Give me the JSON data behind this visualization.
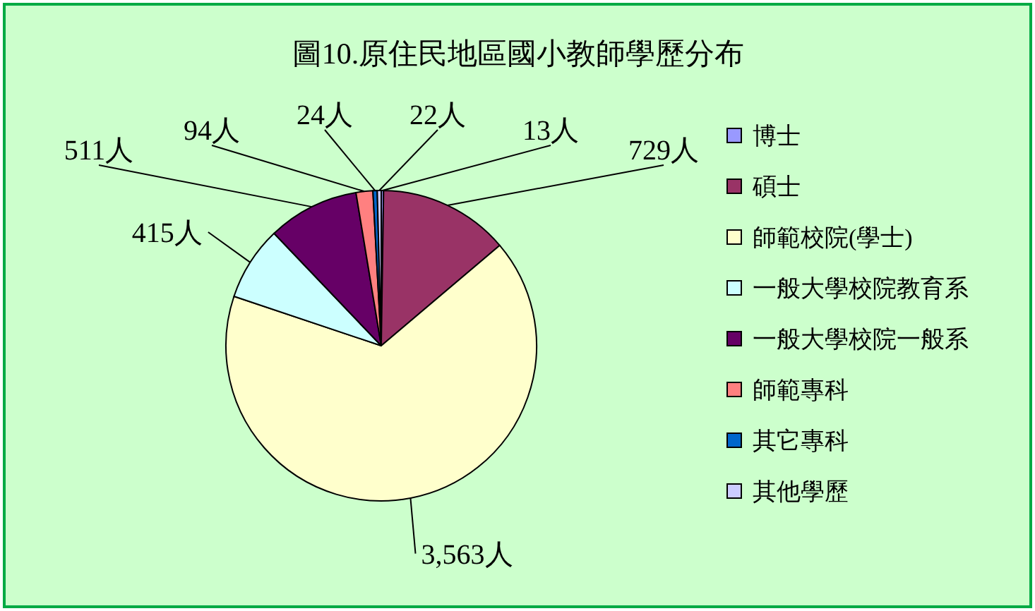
{
  "chart_data": {
    "type": "pie",
    "title": "圖10.原住民地區國小教師學歷分布",
    "categories": [
      "博士",
      "碩士",
      "師範校院(學士)",
      "一般大學校院教育系",
      "一般大學校院一般系",
      "師範專科",
      "其它專科",
      "其他學歷"
    ],
    "values": [
      13,
      729,
      3563,
      415,
      511,
      94,
      24,
      22
    ],
    "value_labels": [
      "13人",
      "729人",
      "3,563人",
      "415人",
      "511人",
      "94人",
      "24人",
      "22人"
    ],
    "colors": [
      "#9999ff",
      "#993366",
      "#ffffcc",
      "#ccffff",
      "#660066",
      "#ff8080",
      "#0066cc",
      "#ccccff"
    ],
    "legend": "right"
  }
}
